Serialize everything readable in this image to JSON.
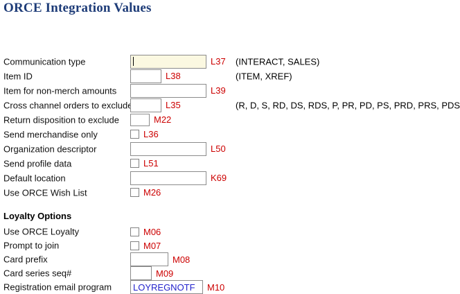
{
  "page": {
    "title": "ORCE Integration Values"
  },
  "colors": {
    "title_text": "#1e3c78",
    "field_code_text": "#cc0000",
    "focused_field_background": "#fbf8e1",
    "entered_value_text": "#2222cc",
    "input_border": "#8b8b8b"
  },
  "sections": [
    {
      "heading": "",
      "rows": [
        {
          "label": "Communication type",
          "code": "L37",
          "hint": "(INTERACT, SALES)",
          "control": "text",
          "size": "wide",
          "focused": true,
          "value": ""
        },
        {
          "label": "Item ID",
          "code": "L38",
          "hint": "(ITEM, XREF)",
          "control": "text",
          "size": "small",
          "value": ""
        },
        {
          "label": "Item for non-merch amounts",
          "code": "L39",
          "hint": "",
          "control": "text",
          "size": "wide",
          "value": ""
        },
        {
          "label": "Cross channel orders to exclude",
          "code": "L35",
          "hint": "(R, D, S, RD, DS, RDS, P, PR, PD, PS, PRD, PRS, PDS, PRDS)",
          "control": "text",
          "size": "small",
          "value": ""
        },
        {
          "label": "Return disposition to exclude",
          "code": "M22",
          "hint": "",
          "control": "text",
          "size": "xsmall",
          "value": ""
        },
        {
          "label": "Send merchandise only",
          "code": "L36",
          "hint": "",
          "control": "checkbox",
          "checked": false
        },
        {
          "label": "Organization descriptor",
          "code": "L50",
          "hint": "",
          "control": "text",
          "size": "wide",
          "value": ""
        },
        {
          "label": "Send profile data",
          "code": "L51",
          "hint": "",
          "control": "checkbox",
          "checked": false
        },
        {
          "label": "Default location",
          "code": "K69",
          "hint": "",
          "control": "text",
          "size": "wide",
          "value": ""
        },
        {
          "label": "Use ORCE Wish List",
          "code": "M26",
          "hint": "",
          "control": "checkbox",
          "checked": false
        }
      ]
    },
    {
      "heading": "Loyalty Options",
      "rows": [
        {
          "label": "Use ORCE Loyalty",
          "code": "M06",
          "hint": "",
          "control": "checkbox",
          "checked": false
        },
        {
          "label": "Prompt to join",
          "code": "M07",
          "hint": "",
          "control": "checkbox",
          "checked": false
        },
        {
          "label": "Card prefix",
          "code": "M08",
          "hint": "",
          "control": "text",
          "size": "medium",
          "value": ""
        },
        {
          "label": "Card series seq#",
          "code": "M09",
          "hint": "",
          "control": "text",
          "size": "seq",
          "value": ""
        },
        {
          "label": "Registration email program",
          "code": "M10",
          "hint": "",
          "control": "text",
          "size": "email",
          "value": "LOYREGNOTF"
        }
      ]
    }
  ]
}
